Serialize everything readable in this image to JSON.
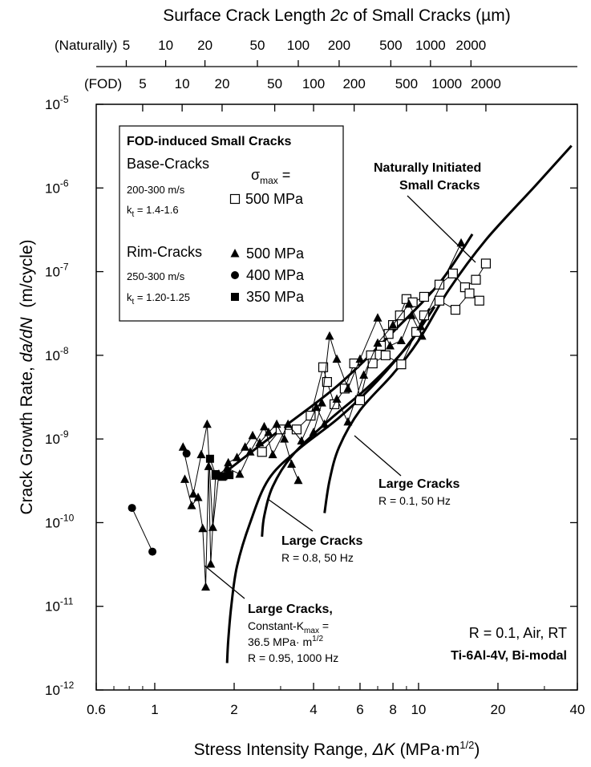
{
  "chart_data": {
    "type": "scatter",
    "x_scale": "log",
    "y_scale": "log",
    "xlim": [
      0.6,
      40
    ],
    "ylim": [
      1e-12,
      1e-05
    ],
    "xlabel": {
      "pre": "Stress Intensity Range, ",
      "sym": "ΔK",
      "unit_pre": " (MPa·m",
      "unit_sup": "1/2",
      "unit_post": ")"
    },
    "ylabel": {
      "pre": "Crack Growth Rate, ",
      "sym": "da/dN",
      "post": "  (m/cycle)"
    },
    "x_ticks": [
      {
        "value": 0.6,
        "label": "0.6"
      },
      {
        "value": 1,
        "label": "1"
      },
      {
        "value": 2,
        "label": "2"
      },
      {
        "value": 4,
        "label": "4"
      },
      {
        "value": 6,
        "label": "6"
      },
      {
        "value": 8,
        "label": "8"
      },
      {
        "value": 10,
        "label": "10"
      },
      {
        "value": 20,
        "label": "20"
      },
      {
        "value": 40,
        "label": "40"
      }
    ],
    "y_ticks": [
      {
        "value": 1e-12,
        "mant": "10",
        "exp": "-12"
      },
      {
        "value": 1e-11,
        "mant": "10",
        "exp": "-11"
      },
      {
        "value": 1e-10,
        "mant": "10",
        "exp": "-10"
      },
      {
        "value": 1e-09,
        "mant": "10",
        "exp": "-9"
      },
      {
        "value": 1e-08,
        "mant": "10",
        "exp": "-8"
      },
      {
        "value": 1e-07,
        "mant": "10",
        "exp": "-7"
      },
      {
        "value": 1e-06,
        "mant": "10",
        "exp": "-6"
      },
      {
        "value": 1e-05,
        "mant": "10",
        "exp": "-5"
      }
    ],
    "top_axis": {
      "title": {
        "pre": "Surface Crack Length ",
        "sym": "2c",
        "post": " of Small Cracks (µm)"
      },
      "naturally": {
        "label": "(Naturally)",
        "ticks": [
          {
            "x": 0.78,
            "label": "5"
          },
          {
            "x": 1.1,
            "label": "10"
          },
          {
            "x": 1.55,
            "label": "20"
          },
          {
            "x": 2.45,
            "label": "50"
          },
          {
            "x": 3.5,
            "label": "100"
          },
          {
            "x": 5.0,
            "label": "200"
          },
          {
            "x": 7.85,
            "label": "500"
          },
          {
            "x": 11.1,
            "label": "1000"
          },
          {
            "x": 15.8,
            "label": "2000"
          }
        ]
      },
      "fod": {
        "label": "(FOD)",
        "ticks": [
          {
            "x": 0.9,
            "label": "5"
          },
          {
            "x": 1.27,
            "label": "10"
          },
          {
            "x": 1.8,
            "label": "20"
          },
          {
            "x": 2.85,
            "label": "50"
          },
          {
            "x": 4.0,
            "label": "100"
          },
          {
            "x": 5.7,
            "label": "200"
          },
          {
            "x": 9.0,
            "label": "500"
          },
          {
            "x": 12.8,
            "label": "1000"
          },
          {
            "x": 18.0,
            "label": "2000"
          }
        ]
      }
    },
    "legend": {
      "title": "FOD-induced Small Cracks",
      "base_label": "Base-Cracks",
      "base_speed": "200-300 m/s",
      "base_kt": {
        "pre": "k",
        "sub": "t",
        "post": " = 1.4-1.6"
      },
      "sigma": {
        "sym": "σ",
        "sub": "max",
        "post": " ="
      },
      "base_stress": "500 MPa",
      "rim_label": "Rim-Cracks",
      "rim_speed": "250-300 m/s",
      "rim_kt": {
        "pre": "k",
        "sub": "t",
        "post": " = 1.20-1.25"
      },
      "rim_stress_1": "500 MPa",
      "rim_stress_2": "400 MPa",
      "rim_stress_3": "350 MPa"
    },
    "annotations": {
      "natural_1": "Naturally Initiated",
      "natural_2": "Small Cracks",
      "large1_title": "Large Cracks",
      "large1_cond": "R = 0.1, 50 Hz",
      "large2_title": "Large Cracks",
      "large2_cond": "R = 0.8, 50 Hz",
      "large3_title": "Large Cracks,",
      "large3_line2": {
        "pre": "Constant-K",
        "sub": "max",
        "post": " ="
      },
      "large3_line3": {
        "pre": "36.5 MPa· m",
        "sup": "1/2"
      },
      "large3_line4": "R = 0.95, 1000 Hz",
      "material_1": "R = 0.1, Air, RT",
      "material_2": "Ti-6Al-4V, Bi-modal"
    },
    "curves": [
      {
        "name": "Naturally Initiated Small Cracks",
        "points": [
          [
            1.85,
            4e-10
          ],
          [
            3.0,
            1.3e-09
          ],
          [
            5.0,
            4.5e-09
          ],
          [
            8.0,
            1.9e-08
          ],
          [
            12.0,
            7.3e-08
          ],
          [
            16.0,
            2.8e-07
          ]
        ]
      },
      {
        "name": "Large Cracks R = 0.1, 50 Hz",
        "points": [
          [
            4.4,
            1.3e-10
          ],
          [
            4.6,
            3.2e-10
          ],
          [
            5.0,
            8e-10
          ],
          [
            6.0,
            2.2e-09
          ],
          [
            8.0,
            6e-09
          ],
          [
            10.0,
            1.5e-08
          ],
          [
            13.0,
            6e-08
          ],
          [
            18.0,
            2.4e-07
          ],
          [
            28.0,
            1.1e-06
          ],
          [
            38.0,
            3.2e-06
          ]
        ]
      },
      {
        "name": "Large Cracks R = 0.8, 50 Hz",
        "points": [
          [
            2.55,
            6.8e-11
          ],
          [
            2.6,
            1.2e-10
          ],
          [
            2.8,
            2.7e-10
          ],
          [
            3.3,
            6.2e-10
          ],
          [
            4.5,
            1.6e-09
          ],
          [
            6.5,
            4.3e-09
          ],
          [
            9.0,
            1.25e-08
          ],
          [
            11.5,
            3.8e-08
          ]
        ]
      },
      {
        "name": "Large Cracks Constant-Kmax",
        "points": [
          [
            1.88,
            2.1e-12
          ],
          [
            1.9,
            4e-12
          ],
          [
            1.95,
            1e-11
          ],
          [
            2.05,
            3e-11
          ],
          [
            2.3,
            1e-10
          ],
          [
            2.7,
            3.3e-10
          ],
          [
            3.5,
            7.5e-10
          ],
          [
            5.0,
            1.8e-09
          ],
          [
            7.0,
            5e-09
          ],
          [
            9.5,
            1.6e-08
          ],
          [
            11.0,
            3.6e-08
          ]
        ]
      }
    ],
    "series": [
      {
        "name": "Base-Cracks 500 MPa",
        "marker": "open-square",
        "paths": [
          [
            [
              2.55,
              7e-10
            ],
            [
              3.0,
              1.3e-09
            ],
            [
              3.45,
              1.3e-09
            ],
            [
              3.9,
              1.9e-09
            ],
            [
              4.35,
              7.2e-09
            ],
            [
              4.5,
              4.8e-09
            ],
            [
              4.8,
              2.6e-09
            ],
            [
              5.25,
              4e-09
            ],
            [
              5.7,
              8e-09
            ],
            [
              6.0,
              2.9e-09
            ],
            [
              6.6,
              1e-08
            ],
            [
              7.2,
              1.3e-08
            ],
            [
              7.7,
              1.8e-08
            ],
            [
              8.0,
              2.3e-08
            ],
            [
              8.5,
              3e-08
            ],
            [
              9.0,
              4.7e-08
            ],
            [
              9.5,
              4.3e-08
            ],
            [
              10.5,
              5e-08
            ],
            [
              12.0,
              7e-08
            ],
            [
              13.5,
              9.5e-08
            ],
            [
              15.0,
              6.5e-08
            ],
            [
              16.5,
              8e-08
            ],
            [
              18.0,
              1.25e-07
            ]
          ],
          [
            [
              6.7,
              8e-09
            ],
            [
              7.5,
              1e-08
            ],
            [
              8.6,
              7.8e-09
            ],
            [
              9.8,
              1.9e-08
            ],
            [
              10.5,
              3e-08
            ],
            [
              12.0,
              4.5e-08
            ],
            [
              13.8,
              3.5e-08
            ],
            [
              15.6,
              5.5e-08
            ],
            [
              17.0,
              4.5e-08
            ]
          ]
        ]
      },
      {
        "name": "Rim-Cracks 500 MPa",
        "marker": "filled-triangle",
        "paths": [
          [
            [
              1.3,
              3.3e-10
            ],
            [
              1.38,
              1.6e-10
            ],
            [
              1.46,
              2e-10
            ],
            [
              1.52,
              8.5e-11
            ],
            [
              1.56,
              1.7e-11
            ],
            [
              1.6,
              4.7e-10
            ],
            [
              1.63,
              3.2e-11
            ],
            [
              1.7,
              3.6e-10
            ],
            [
              1.8,
              3.5e-10
            ],
            [
              1.9,
              5.2e-10
            ],
            [
              2.05,
              6e-10
            ],
            [
              2.2,
              8e-10
            ],
            [
              2.35,
              1.1e-09
            ],
            [
              2.5,
              9e-10
            ],
            [
              2.7,
              1.2e-09
            ],
            [
              2.9,
              1.5e-09
            ],
            [
              3.1,
              1e-09
            ],
            [
              3.3,
              5e-10
            ],
            [
              3.5,
              3.2e-10
            ]
          ],
          [
            [
              1.28,
              8e-10
            ],
            [
              1.4,
              2.2e-10
            ],
            [
              1.5,
              6.5e-10
            ],
            [
              1.58,
              1.5e-09
            ],
            [
              1.66,
              8.8e-11
            ],
            [
              1.75,
              3.8e-10
            ],
            [
              1.88,
              4.5e-10
            ],
            [
              2.1,
              3.8e-10
            ],
            [
              2.3,
              7e-10
            ],
            [
              2.6,
              1.4e-09
            ],
            [
              2.8,
              6.5e-10
            ],
            [
              3.2,
              1.5e-09
            ],
            [
              3.6,
              9.5e-10
            ],
            [
              4.1,
              2.4e-09
            ],
            [
              4.4,
              1.5e-09
            ],
            [
              4.9,
              3e-09
            ],
            [
              5.4,
              1.6e-09
            ],
            [
              6.2,
              5.8e-09
            ],
            [
              7.0,
              1.4e-08
            ],
            [
              8.0,
              2.3e-08
            ],
            [
              9.2,
              4.1e-08
            ],
            [
              10.2,
              2.2e-08
            ],
            [
              14.5,
              2.2e-07
            ]
          ],
          [
            [
              4.0,
              1.2e-09
            ],
            [
              4.3,
              2.7e-09
            ],
            [
              4.6,
              1.7e-08
            ],
            [
              4.9,
              9e-09
            ],
            [
              5.4,
              4e-09
            ],
            [
              6.0,
              9e-09
            ],
            [
              7.0,
              2.8e-08
            ],
            [
              7.8,
              1.3e-08
            ],
            [
              8.6,
              1.5e-08
            ],
            [
              9.4,
              3e-08
            ],
            [
              10.3,
              1.7e-08
            ]
          ]
        ]
      },
      {
        "name": "Rim-Cracks 400 MPa",
        "marker": "filled-circle",
        "paths": [
          [
            [
              0.82,
              1.5e-10
            ],
            [
              0.98,
              4.5e-11
            ]
          ],
          [
            [
              1.32,
              6.7e-10
            ]
          ]
        ]
      },
      {
        "name": "Rim-Cracks 350 MPa",
        "marker": "filled-square",
        "paths": [
          [
            [
              1.62,
              5.8e-10
            ],
            [
              1.7,
              3.8e-10
            ],
            [
              1.82,
              3.6e-10
            ],
            [
              1.92,
              3.7e-10
            ]
          ]
        ]
      }
    ]
  }
}
